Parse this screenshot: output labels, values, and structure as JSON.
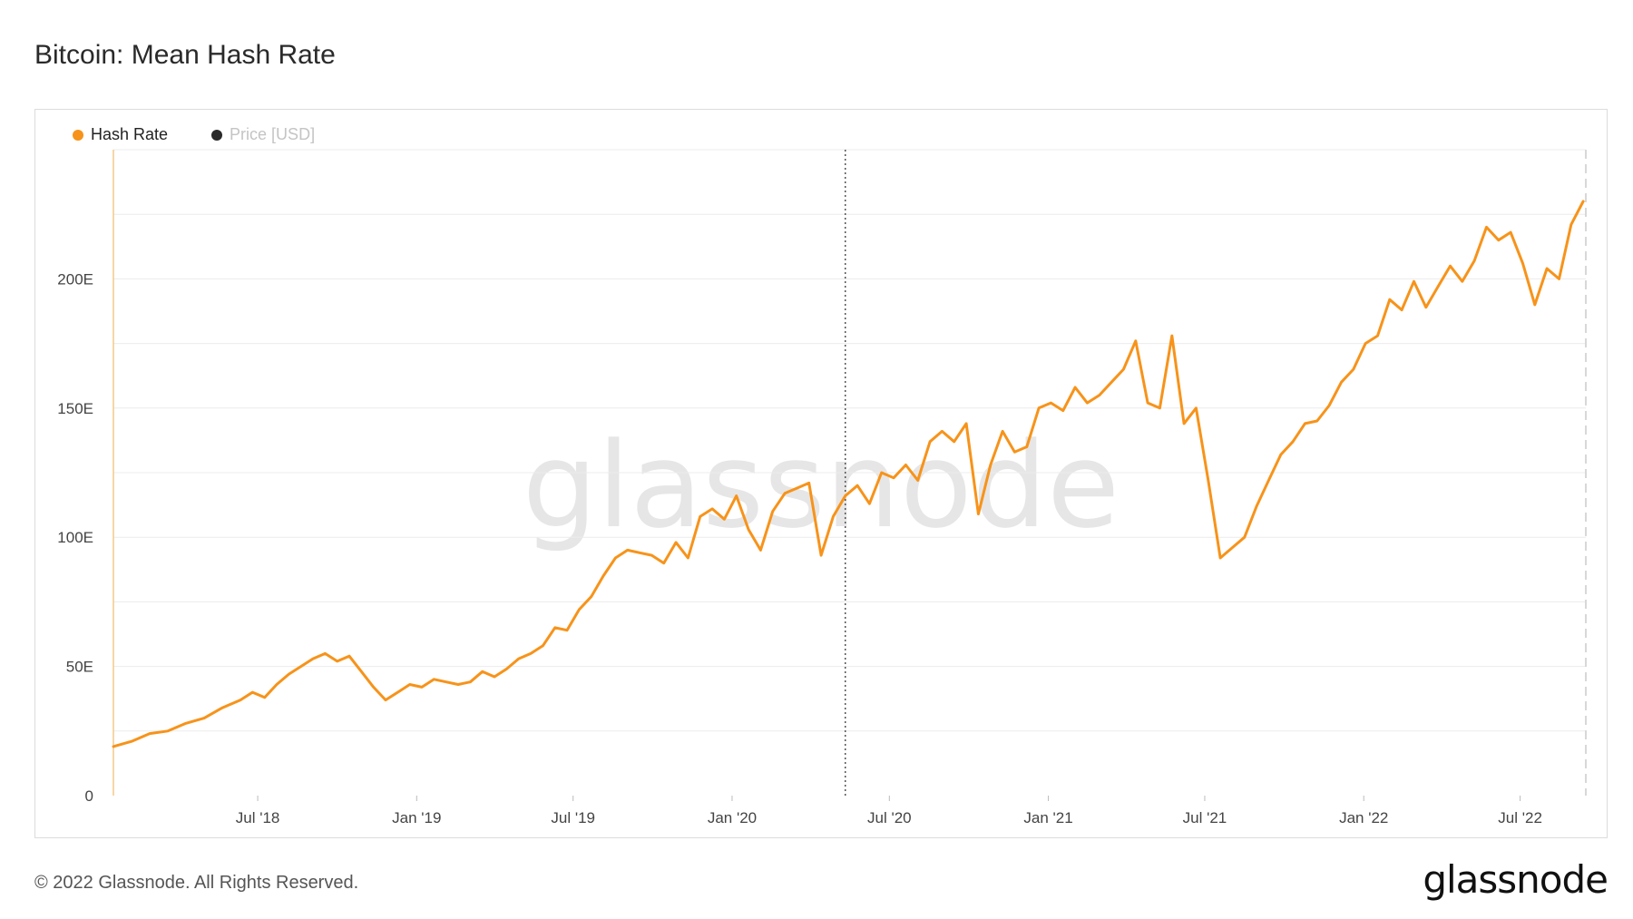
{
  "title": "Bitcoin: Mean Hash Rate",
  "legend": {
    "items": [
      {
        "label": "Hash Rate",
        "color": "#f7931a",
        "active": true
      },
      {
        "label": "Price [USD]",
        "color": "#2a2a2a",
        "active": false
      }
    ]
  },
  "watermark": "glassnode",
  "footer": {
    "copyright": "© 2022 Glassnode. All Rights Reserved.",
    "brand": "glassnode"
  },
  "colors": {
    "series": "#f7931a",
    "grid": "#ececec"
  },
  "chart_data": {
    "type": "line",
    "xlabel": "",
    "ylabel": "",
    "xlim": [
      "2018-01-15",
      "2022-09-15"
    ],
    "ylim": [
      0,
      250
    ],
    "y_ticks": [
      0,
      50,
      100,
      150,
      200
    ],
    "y_tick_labels": [
      "0",
      "50E",
      "100E",
      "150E",
      "200E"
    ],
    "x_ticks": [
      "2018-07-01",
      "2019-01-01",
      "2019-07-01",
      "2020-01-01",
      "2020-07-01",
      "2021-01-01",
      "2021-07-01",
      "2022-01-01",
      "2022-07-01"
    ],
    "x_tick_labels": [
      "Jul '18",
      "Jan '19",
      "Jul '19",
      "Jan '20",
      "Jul '20",
      "Jan '21",
      "Jul '21",
      "Jan '22",
      "Jul '22"
    ],
    "marker_line_date": "2020-05-11",
    "grid": true,
    "legend_position": "top-left",
    "series": [
      {
        "name": "Hash Rate",
        "x": [
          "2018-01-15",
          "2018-02-05",
          "2018-02-26",
          "2018-03-19",
          "2018-04-09",
          "2018-04-30",
          "2018-05-21",
          "2018-06-11",
          "2018-06-25",
          "2018-07-09",
          "2018-07-23",
          "2018-08-06",
          "2018-08-20",
          "2018-09-03",
          "2018-09-17",
          "2018-10-01",
          "2018-10-15",
          "2018-10-29",
          "2018-11-12",
          "2018-11-26",
          "2018-12-10",
          "2018-12-24",
          "2019-01-07",
          "2019-01-21",
          "2019-02-04",
          "2019-02-18",
          "2019-03-04",
          "2019-03-18",
          "2019-04-01",
          "2019-04-15",
          "2019-04-29",
          "2019-05-13",
          "2019-05-27",
          "2019-06-10",
          "2019-06-24",
          "2019-07-08",
          "2019-07-22",
          "2019-08-05",
          "2019-08-19",
          "2019-09-02",
          "2019-09-16",
          "2019-09-30",
          "2019-10-14",
          "2019-10-28",
          "2019-11-11",
          "2019-11-25",
          "2019-12-09",
          "2019-12-23",
          "2020-01-06",
          "2020-01-20",
          "2020-02-03",
          "2020-02-17",
          "2020-03-02",
          "2020-03-16",
          "2020-03-30",
          "2020-04-13",
          "2020-04-27",
          "2020-05-11",
          "2020-05-25",
          "2020-06-08",
          "2020-06-22",
          "2020-07-06",
          "2020-07-20",
          "2020-08-03",
          "2020-08-17",
          "2020-08-31",
          "2020-09-14",
          "2020-09-28",
          "2020-10-12",
          "2020-10-26",
          "2020-11-09",
          "2020-11-23",
          "2020-12-07",
          "2020-12-21",
          "2021-01-04",
          "2021-01-18",
          "2021-02-01",
          "2021-02-15",
          "2021-03-01",
          "2021-03-15",
          "2021-03-29",
          "2021-04-12",
          "2021-04-26",
          "2021-05-10",
          "2021-05-24",
          "2021-06-07",
          "2021-06-21",
          "2021-07-05",
          "2021-07-19",
          "2021-08-02",
          "2021-08-16",
          "2021-08-30",
          "2021-09-13",
          "2021-09-27",
          "2021-10-11",
          "2021-10-25",
          "2021-11-08",
          "2021-11-22",
          "2021-12-06",
          "2021-12-20",
          "2022-01-03",
          "2022-01-17",
          "2022-01-31",
          "2022-02-14",
          "2022-02-28",
          "2022-03-14",
          "2022-03-28",
          "2022-04-11",
          "2022-04-25",
          "2022-05-09",
          "2022-05-23",
          "2022-06-06",
          "2022-06-20",
          "2022-07-04",
          "2022-07-18",
          "2022-08-01",
          "2022-08-15",
          "2022-08-29",
          "2022-09-12"
        ],
        "values": [
          19,
          21,
          24,
          25,
          28,
          30,
          34,
          37,
          40,
          38,
          43,
          47,
          50,
          53,
          55,
          52,
          54,
          48,
          42,
          37,
          40,
          43,
          42,
          45,
          44,
          43,
          44,
          48,
          46,
          49,
          53,
          55,
          58,
          65,
          64,
          72,
          77,
          85,
          92,
          95,
          94,
          93,
          90,
          98,
          92,
          108,
          111,
          107,
          116,
          103,
          95,
          110,
          117,
          119,
          121,
          93,
          108,
          116,
          120,
          113,
          125,
          123,
          128,
          122,
          137,
          141,
          137,
          144,
          109,
          128,
          141,
          133,
          135,
          150,
          152,
          149,
          158,
          152,
          155,
          160,
          165,
          176,
          152,
          150,
          178,
          144,
          150,
          122,
          92,
          96,
          100,
          112,
          122,
          132,
          137,
          144,
          145,
          151,
          160,
          165,
          175,
          178,
          192,
          188,
          199,
          189,
          197,
          205,
          199,
          207,
          220,
          215,
          218,
          206,
          190,
          204,
          200,
          221,
          230
        ]
      }
    ]
  }
}
